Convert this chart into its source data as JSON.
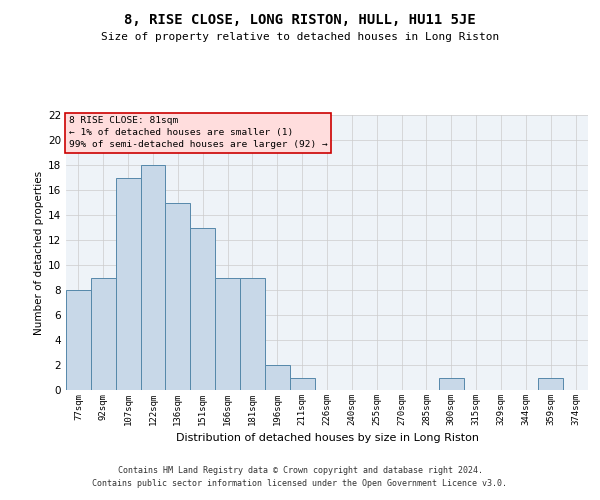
{
  "title": "8, RISE CLOSE, LONG RISTON, HULL, HU11 5JE",
  "subtitle": "Size of property relative to detached houses in Long Riston",
  "xlabel": "Distribution of detached houses by size in Long Riston",
  "ylabel": "Number of detached properties",
  "categories": [
    "77sqm",
    "92sqm",
    "107sqm",
    "122sqm",
    "136sqm",
    "151sqm",
    "166sqm",
    "181sqm",
    "196sqm",
    "211sqm",
    "226sqm",
    "240sqm",
    "255sqm",
    "270sqm",
    "285sqm",
    "300sqm",
    "315sqm",
    "329sqm",
    "344sqm",
    "359sqm",
    "374sqm"
  ],
  "values": [
    8,
    9,
    17,
    18,
    15,
    13,
    9,
    9,
    2,
    1,
    0,
    0,
    0,
    0,
    0,
    1,
    0,
    0,
    0,
    1,
    0
  ],
  "bar_color": "#c8d8e8",
  "bar_edge_color": "#5588aa",
  "annotation_line1": "8 RISE CLOSE: 81sqm",
  "annotation_line2": "← 1% of detached houses are smaller (1)",
  "annotation_line3": "99% of semi-detached houses are larger (92) →",
  "annotation_box_color": "#ffdddd",
  "annotation_box_edge_color": "#cc0000",
  "ylim": [
    0,
    22
  ],
  "yticks": [
    0,
    2,
    4,
    6,
    8,
    10,
    12,
    14,
    16,
    18,
    20,
    22
  ],
  "grid_color": "#cccccc",
  "background_color": "#eef3f8",
  "footer_line1": "Contains HM Land Registry data © Crown copyright and database right 2024.",
  "footer_line2": "Contains public sector information licensed under the Open Government Licence v3.0."
}
